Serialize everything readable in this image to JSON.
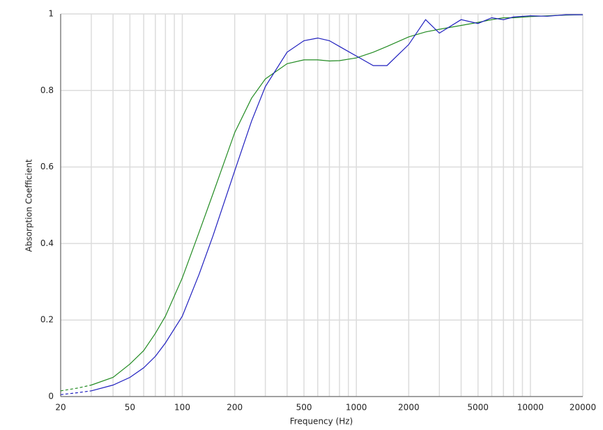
{
  "chart_data": {
    "type": "line",
    "x_label": "Frequency (Hz)",
    "y_label": "Absorption Coefficient",
    "x_log": true,
    "grid": true,
    "xlim": [
      20,
      20000
    ],
    "ylim": [
      0,
      1
    ],
    "xticks": [
      20,
      50,
      100,
      200,
      500,
      1000,
      2000,
      5000,
      10000,
      20000
    ],
    "x_minor_gridlines": [
      30,
      40,
      60,
      70,
      80,
      90,
      300,
      400,
      600,
      700,
      800,
      900,
      3000,
      4000,
      6000,
      7000,
      8000,
      9000
    ],
    "yticks": [
      0,
      0.2,
      0.4,
      0.6,
      0.8,
      1
    ],
    "dashed_below": 30,
    "x": [
      20,
      25,
      30,
      40,
      50,
      60,
      70,
      80,
      100,
      125,
      150,
      200,
      250,
      300,
      400,
      500,
      600,
      700,
      800,
      1000,
      1250,
      1500,
      2000,
      2500,
      3000,
      4000,
      5000,
      6000,
      7000,
      8000,
      10000,
      12500,
      16000,
      20000
    ],
    "series": [
      {
        "color": "#228b22",
        "values": [
          0.015,
          0.022,
          0.03,
          0.05,
          0.085,
          0.12,
          0.165,
          0.21,
          0.31,
          0.43,
          0.53,
          0.69,
          0.78,
          0.83,
          0.87,
          0.88,
          0.88,
          0.877,
          0.878,
          0.885,
          0.9,
          0.915,
          0.94,
          0.953,
          0.96,
          0.97,
          0.978,
          0.985,
          0.99,
          0.99,
          0.993,
          0.995,
          0.997,
          0.998
        ]
      },
      {
        "color": "#1f1fbf",
        "values": [
          0.005,
          0.01,
          0.015,
          0.03,
          0.05,
          0.075,
          0.105,
          0.14,
          0.21,
          0.32,
          0.42,
          0.59,
          0.72,
          0.81,
          0.9,
          0.93,
          0.937,
          0.93,
          0.915,
          0.89,
          0.865,
          0.865,
          0.92,
          0.985,
          0.95,
          0.985,
          0.975,
          0.99,
          0.985,
          0.992,
          0.995,
          0.994,
          0.998,
          0.998
        ]
      }
    ]
  }
}
